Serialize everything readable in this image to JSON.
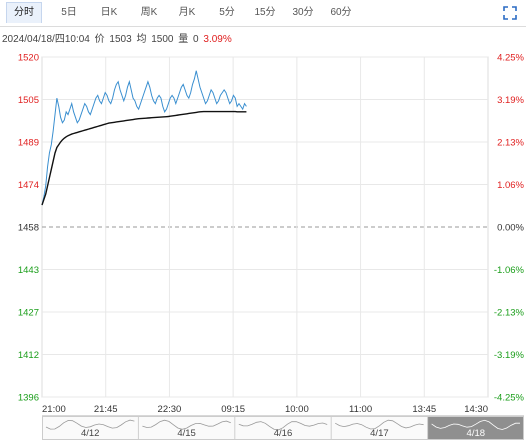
{
  "tabs": [
    {
      "label": "分时",
      "active": true
    },
    {
      "label": "5日",
      "active": false
    },
    {
      "label": "日K",
      "active": false
    },
    {
      "label": "周K",
      "active": false
    },
    {
      "label": "月K",
      "active": false
    },
    {
      "label": "5分",
      "active": false
    },
    {
      "label": "15分",
      "active": false
    },
    {
      "label": "30分",
      "active": false
    },
    {
      "label": "60分",
      "active": false
    }
  ],
  "icons": {
    "fullscreen": "fullscreen-icon"
  },
  "info": {
    "datetime": "2024/04/18/四10:04",
    "price_label": "价",
    "price": "1503",
    "avg_label": "均",
    "avg": "1500",
    "volume_label": "量",
    "volume": "0",
    "change": "3.09%"
  },
  "colors": {
    "up": "#e02020",
    "down": "#1a9e1a",
    "neutral": "#333333",
    "price_line": "#3a8fd0",
    "avg_line": "#111111",
    "dashed": "#999999",
    "grid": "#e8e8e8",
    "accent": "#2b6cc4"
  },
  "chart_data": {
    "type": "line",
    "prev_close": 1458,
    "ylim": [
      1396,
      1520
    ],
    "y_ticks_left": [
      "1520",
      "1505",
      "1489",
      "1474",
      "1458",
      "1443",
      "1427",
      "1412",
      "1396"
    ],
    "y_ticks_right": [
      "4.25%",
      "3.19%",
      "2.13%",
      "1.06%",
      "0.00%",
      "-1.06%",
      "-2.13%",
      "-3.19%",
      "-4.25%"
    ],
    "x_ticks": [
      "21:00",
      "21:45",
      "22:30",
      "09:15",
      "10:00",
      "11:00",
      "13:45",
      "14:30"
    ],
    "series": [
      {
        "kind": "price",
        "values": [
          1466,
          1469,
          1473,
          1480,
          1485,
          1488,
          1493,
          1499,
          1505,
          1502,
          1498,
          1496,
          1497,
          1500,
          1499,
          1501,
          1503,
          1500,
          1498,
          1496,
          1497,
          1499,
          1501,
          1503,
          1502,
          1500,
          1499,
          1501,
          1503,
          1505,
          1506,
          1504,
          1503,
          1505,
          1507,
          1506,
          1504,
          1503,
          1505,
          1508,
          1510,
          1511,
          1508,
          1506,
          1504,
          1506,
          1509,
          1511,
          1508,
          1505,
          1504,
          1502,
          1501,
          1503,
          1505,
          1507,
          1509,
          1511,
          1509,
          1506,
          1504,
          1503,
          1505,
          1506,
          1505,
          1502,
          1500,
          1501,
          1503,
          1505,
          1506,
          1505,
          1503,
          1505,
          1507,
          1509,
          1510,
          1508,
          1506,
          1505,
          1507,
          1510,
          1512,
          1515,
          1512,
          1509,
          1507,
          1505,
          1503,
          1504,
          1506,
          1508,
          1507,
          1505,
          1503,
          1504,
          1506,
          1507,
          1508,
          1507,
          1505,
          1503,
          1504,
          1506,
          1505,
          1502,
          1503,
          1502,
          1501,
          1503,
          1502
        ],
        "color": "#3a8fd0"
      },
      {
        "kind": "average",
        "values": [
          1466,
          1468,
          1470,
          1473,
          1476,
          1479,
          1482,
          1485,
          1487,
          1488,
          1489,
          1489.8,
          1490.4,
          1490.9,
          1491.3,
          1491.6,
          1491.9,
          1492.1,
          1492.3,
          1492.5,
          1492.7,
          1492.9,
          1493.1,
          1493.3,
          1493.5,
          1493.7,
          1493.9,
          1494.1,
          1494.3,
          1494.5,
          1494.7,
          1494.9,
          1495.1,
          1495.3,
          1495.5,
          1495.7,
          1495.9,
          1496.0,
          1496.1,
          1496.2,
          1496.3,
          1496.4,
          1496.5,
          1496.6,
          1496.7,
          1496.8,
          1496.9,
          1497.0,
          1497.1,
          1497.2,
          1497.3,
          1497.4,
          1497.5,
          1497.55,
          1497.6,
          1497.65,
          1497.7,
          1497.75,
          1497.8,
          1497.85,
          1497.9,
          1497.95,
          1498.0,
          1498.05,
          1498.1,
          1498.15,
          1498.2,
          1498.25,
          1498.3,
          1498.4,
          1498.5,
          1498.6,
          1498.7,
          1498.8,
          1498.9,
          1499.0,
          1499.1,
          1499.2,
          1499.3,
          1499.4,
          1499.5,
          1499.6,
          1499.7,
          1499.8,
          1499.9,
          1500.0,
          1500.05,
          1500.1,
          1500.1,
          1500.1,
          1500.1,
          1500.1,
          1500.1,
          1500.1,
          1500.1,
          1500.1,
          1500.1,
          1500.1,
          1500.1,
          1500.1,
          1500.1,
          1500.1,
          1500.1,
          1500.1,
          1500.1,
          1500.0,
          1500.0,
          1500.0,
          1500.0,
          1500.0,
          1500.0
        ],
        "color": "#111111"
      }
    ]
  },
  "navigator": {
    "labels": [
      "4/12",
      "4/15",
      "4/16",
      "4/17",
      "4/18"
    ],
    "selected": "4/18"
  }
}
